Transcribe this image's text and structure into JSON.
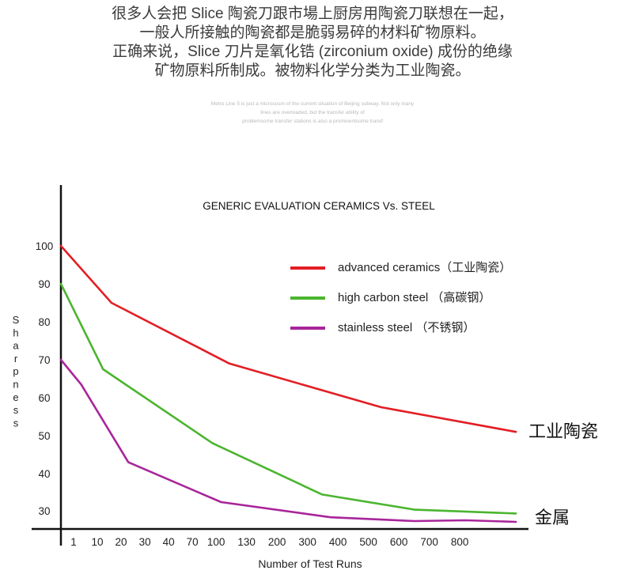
{
  "intro": {
    "lines": [
      "很多人会把 Slice 陶瓷刀跟市場上厨房用陶瓷刀联想在一起，",
      "一般人所接触的陶瓷都是脆弱易碎的材料矿物原料。",
      "正确来说，Slice 刀片是氧化锆 (zirconium oxide) 成份的绝缘",
      "矿物原料所制成。被物料化学分类为工业陶瓷。"
    ]
  },
  "watermark": {
    "lines": [
      "Metro Line 5 is just a microcosm of the current situation of Beijing subway. Not only many",
      "lines are overloaded, but the transfer ability of",
      "problemsome transfer stations is also a prominentsome transf"
    ]
  },
  "chart_data": {
    "type": "line",
    "title": "GENERIC EVALUATION CERAMICS Vs. STEEL",
    "xlabel": "Number of Test Runs",
    "ylabel": "Sharpness",
    "x_tick_labels": [
      "1",
      "10",
      "20",
      "30",
      "40",
      "70",
      "100",
      "130",
      "200",
      "300",
      "400",
      "500",
      "600",
      "700",
      "800"
    ],
    "y_ticks": [
      30,
      40,
      50,
      60,
      70,
      80,
      90,
      100
    ],
    "ylim": [
      27,
      101
    ],
    "grid": false,
    "legend_position": "top-right",
    "series": [
      {
        "name": "advanced ceramics（工业陶瓷）",
        "color": "#e31e24",
        "end_label": "工业陶瓷",
        "points": [
          [
            0,
            100
          ],
          [
            3,
            85
          ],
          [
            10,
            69
          ],
          [
            19,
            57.5
          ],
          [
            27,
            51
          ]
        ]
      },
      {
        "name": "high carbon steel （高碳钢）",
        "color": "#4bb52f",
        "end_label": "",
        "points": [
          [
            0,
            90
          ],
          [
            2.5,
            67.5
          ],
          [
            9,
            48
          ],
          [
            15.5,
            34.5
          ],
          [
            21,
            30.5
          ],
          [
            27,
            29.5
          ]
        ]
      },
      {
        "name": "stainless steel （不锈钢）",
        "color": "#a8259a",
        "end_label": "金属",
        "points": [
          [
            0,
            70
          ],
          [
            1.2,
            63.5
          ],
          [
            4,
            43
          ],
          [
            9.5,
            32.5
          ],
          [
            16,
            28.5
          ],
          [
            21,
            27.5
          ],
          [
            24,
            27.7
          ],
          [
            27,
            27.3
          ]
        ]
      }
    ],
    "annotations": [
      "工业陶瓷",
      "金属"
    ]
  }
}
